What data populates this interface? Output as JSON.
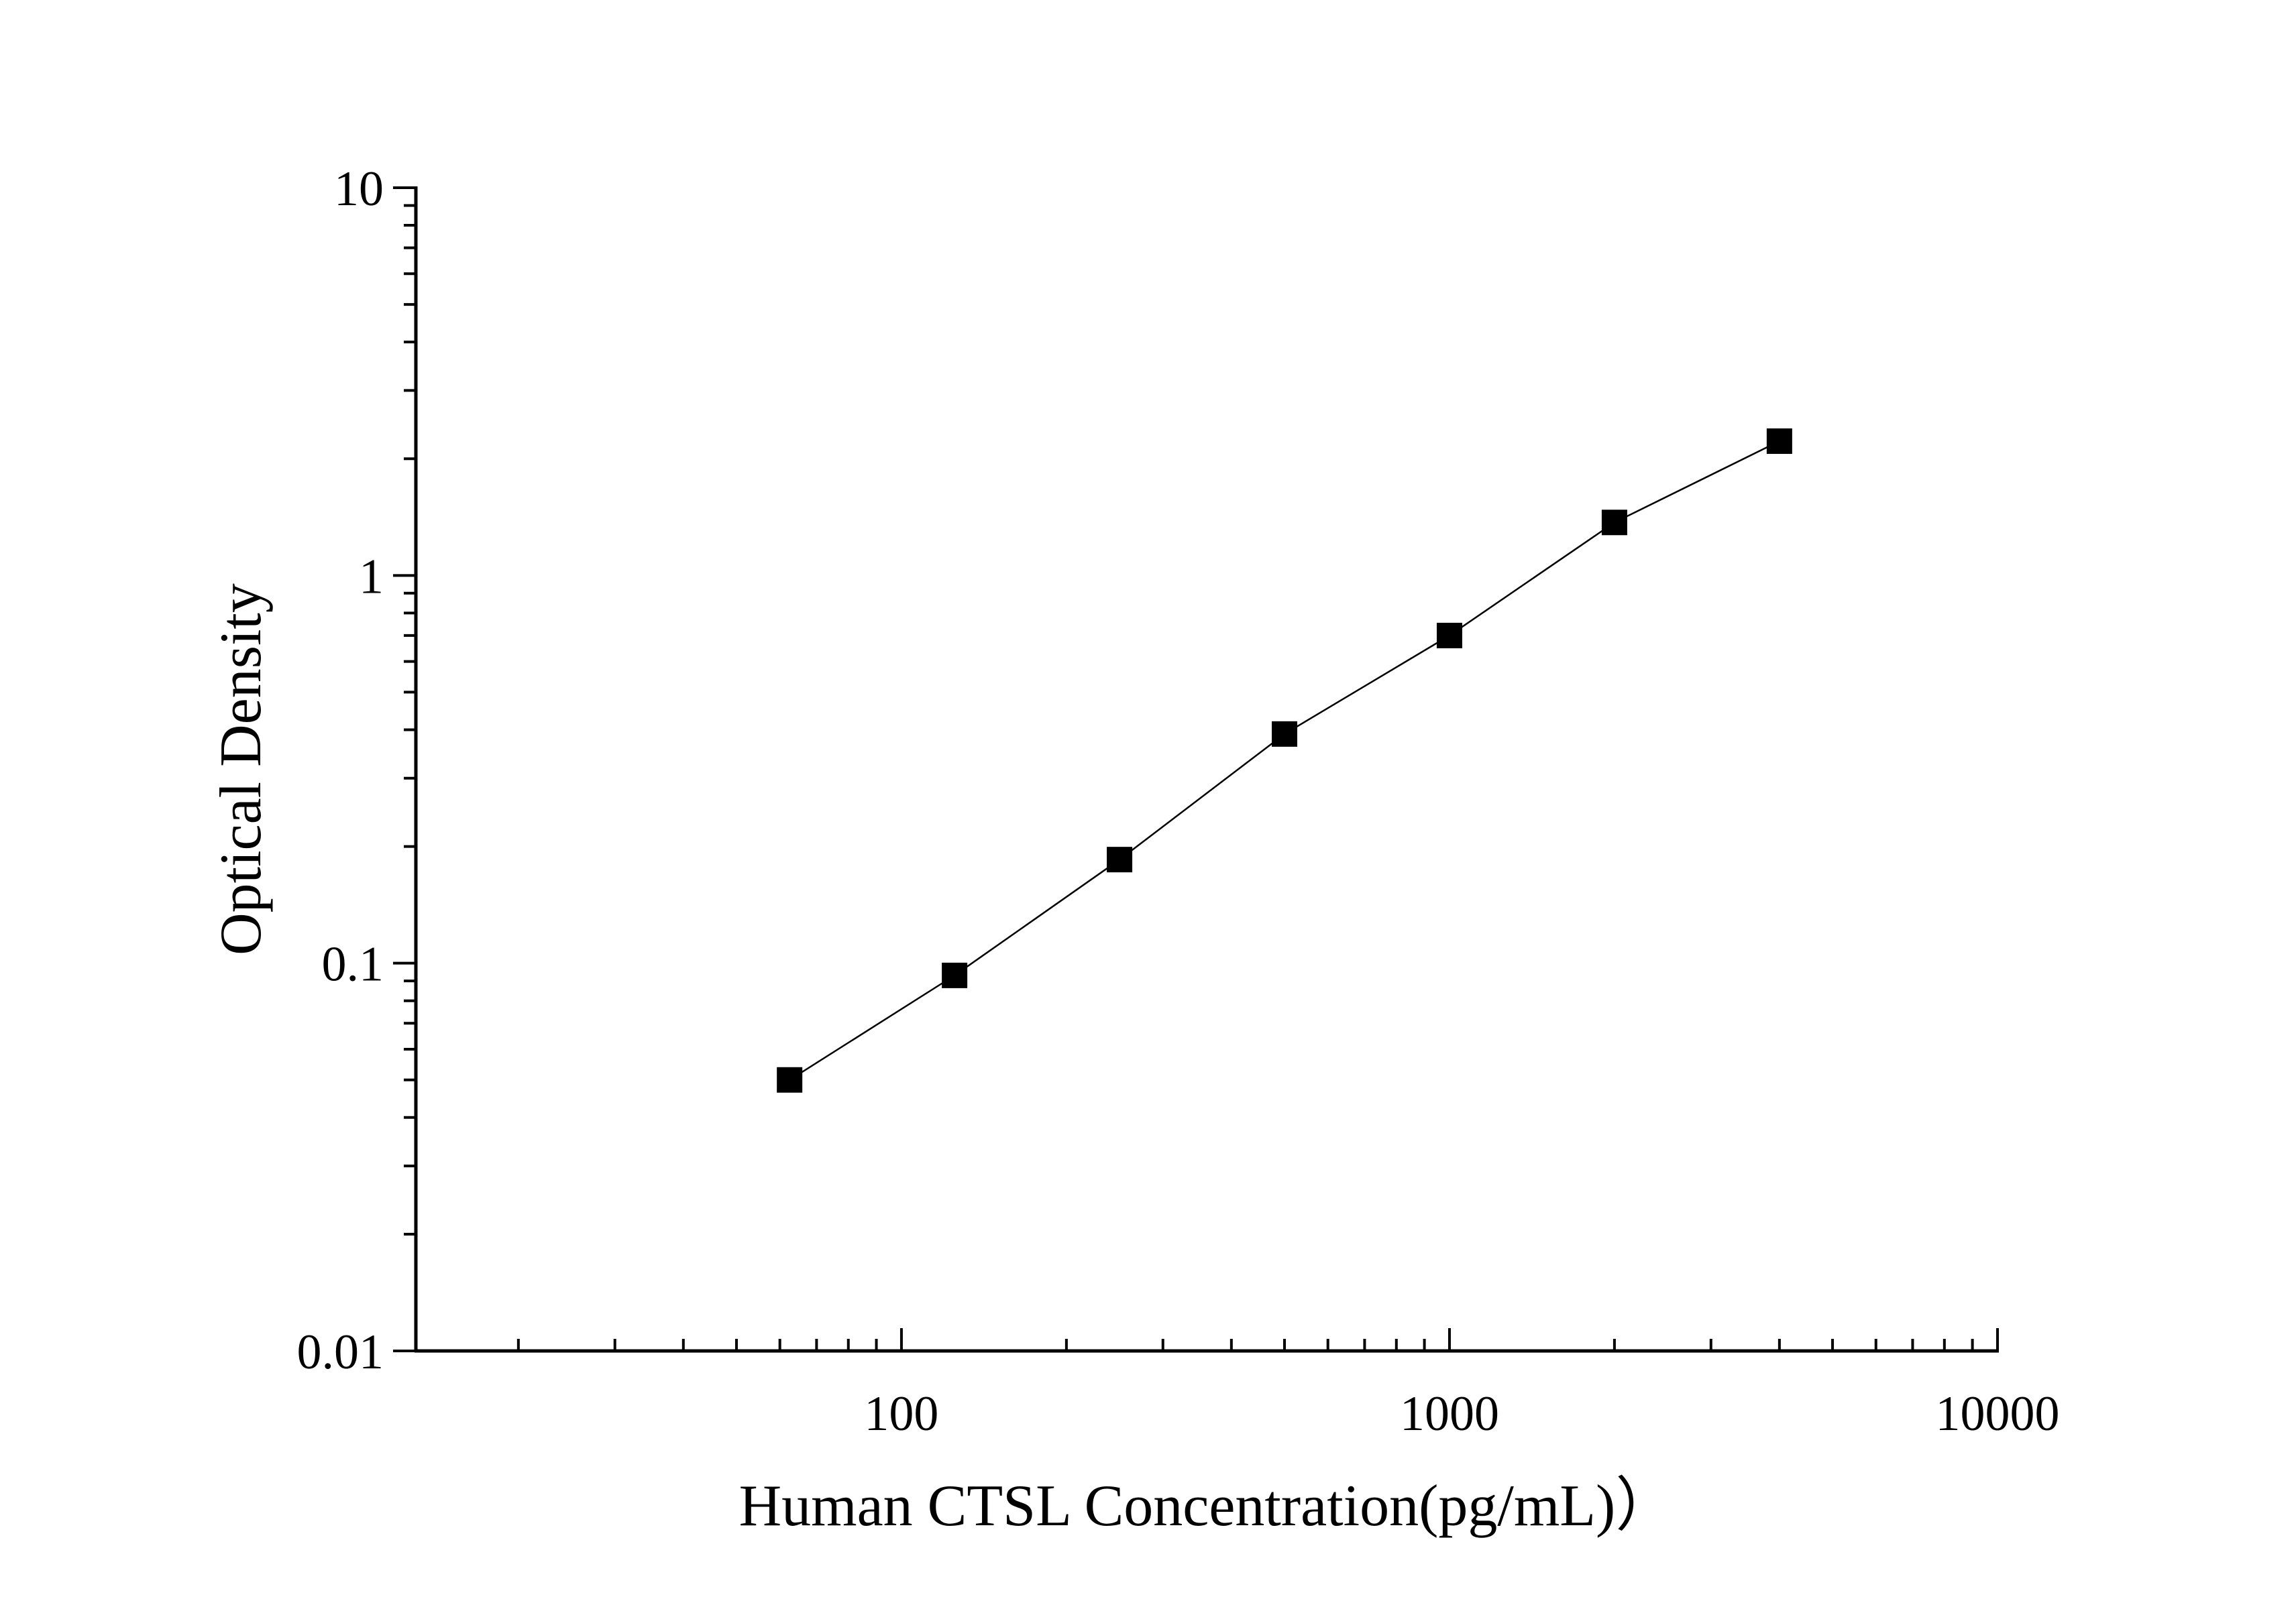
{
  "chart_data": {
    "type": "line",
    "xlabel": "Human CTSL Concentration(pg/mL)）",
    "ylabel": "Optical Density",
    "x_scale": "log",
    "y_scale": "log",
    "xlim": [
      13,
      10000
    ],
    "ylim": [
      0.01,
      10
    ],
    "x_ticks": [
      {
        "value": 100,
        "label": "100"
      },
      {
        "value": 1000,
        "label": "1000"
      },
      {
        "value": 10000,
        "label": "10000"
      }
    ],
    "y_ticks": [
      {
        "value": 0.01,
        "label": "0.01"
      },
      {
        "value": 0.1,
        "label": "0.1"
      },
      {
        "value": 1,
        "label": "1"
      },
      {
        "value": 10,
        "label": "10"
      }
    ],
    "grid": false,
    "series": [
      {
        "x": [
          62.5,
          125,
          250,
          500,
          1000,
          2000,
          4000
        ],
        "y": [
          0.05,
          0.093,
          0.185,
          0.39,
          0.7,
          1.37,
          2.22
        ],
        "marker": "square",
        "color": "#000000"
      }
    ]
  }
}
